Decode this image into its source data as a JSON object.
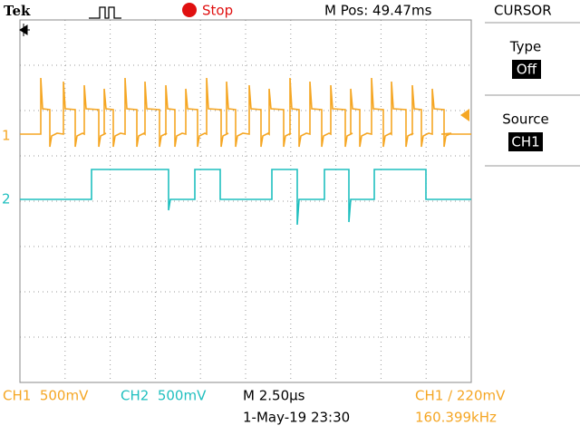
{
  "header": {
    "brand": "Tek",
    "status": "Stop",
    "position": "M Pos: 49.47ms"
  },
  "menu": {
    "title": "CURSOR",
    "items": [
      {
        "label": "Type",
        "value": "Off"
      },
      {
        "label": "Source",
        "value": "CH1"
      }
    ]
  },
  "markers": {
    "ch1": "1",
    "ch2": "2"
  },
  "footer": {
    "ch1": "CH1  500mV",
    "ch2": "CH2  500mV",
    "timebase": "M 2.50µs",
    "date": "1-May-19 23:30",
    "trigger": "CH1 ∕ 220mV",
    "frequency": "160.399kHz"
  }
}
